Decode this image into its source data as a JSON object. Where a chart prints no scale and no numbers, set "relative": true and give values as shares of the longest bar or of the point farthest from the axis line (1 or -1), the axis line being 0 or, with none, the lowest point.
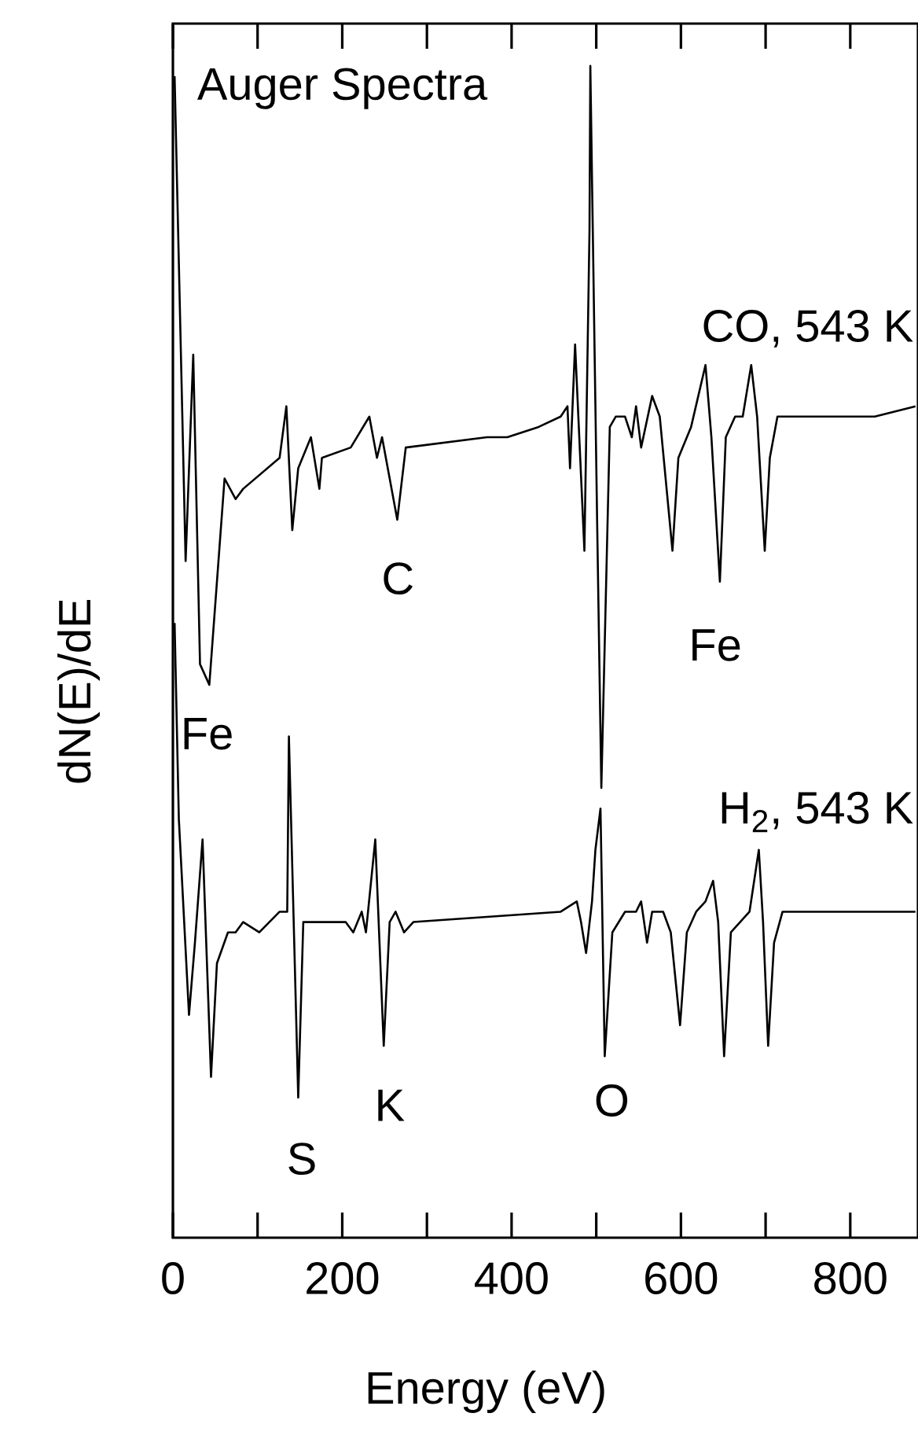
{
  "chart_data": {
    "type": "line",
    "relative": true,
    "xlabel": "Energy (eV)",
    "ylabel": "dN(E)/dE",
    "xlim": [
      0,
      880
    ],
    "xticks": [
      0,
      {
        "value": 100,
        "label": null
      },
      200,
      {
        "value": 300,
        "label": null
      },
      400,
      {
        "value": 500,
        "label": null
      },
      600,
      {
        "value": 700,
        "label": null
      },
      800
    ],
    "annotations": [
      "Auger Spectra",
      "Fe",
      "C",
      "Fe",
      "S",
      "K",
      "O"
    ],
    "series": [
      {
        "name": "CO, 543 K",
        "color": "#000000",
        "x": [
          2,
          15,
          24,
          32,
          43,
          52,
          61,
          74,
          83,
          126,
          134,
          141,
          148,
          163,
          173,
          176,
          210,
          232,
          241,
          247,
          265,
          275,
          371,
          395,
          432,
          458,
          466,
          469,
          475,
          486,
          492,
          493,
          501,
          506,
          516,
          523,
          534,
          542,
          547,
          553,
          566,
          575,
          590,
          597,
          612,
          629,
          636,
          646,
          653,
          664,
          673,
          683,
          690,
          699,
          705,
          714,
          766,
          829,
          877
        ],
        "values": [
          0.99,
          0.52,
          0.72,
          0.42,
          0.4,
          0.5,
          0.6,
          0.58,
          0.59,
          0.62,
          0.67,
          0.55,
          0.61,
          0.64,
          0.59,
          0.62,
          0.63,
          0.66,
          0.62,
          0.64,
          0.56,
          0.63,
          0.64,
          0.64,
          0.65,
          0.66,
          0.67,
          0.61,
          0.73,
          0.53,
          0.84,
          1.0,
          0.56,
          0.3,
          0.65,
          0.66,
          0.66,
          0.64,
          0.67,
          0.63,
          0.68,
          0.66,
          0.53,
          0.62,
          0.65,
          0.71,
          0.64,
          0.5,
          0.64,
          0.66,
          0.66,
          0.71,
          0.66,
          0.53,
          0.62,
          0.66,
          0.66,
          0.66,
          0.67
        ]
      },
      {
        "name": "H$_{2}$, 543 K",
        "color": "#000000",
        "x": [
          2,
          7,
          19,
          26,
          35,
          45,
          52,
          65,
          74,
          83,
          102,
          126,
          135,
          137,
          148,
          154,
          204,
          213,
          223,
          228,
          239,
          249,
          256,
          263,
          273,
          284,
          458,
          477,
          482,
          488,
          495,
          499,
          505,
          510,
          519,
          534,
          547,
          553,
          560,
          566,
          579,
          588,
          599,
          607,
          618,
          629,
          638,
          644,
          651,
          659,
          681,
          692,
          697,
          703,
          710,
          720,
          798,
          877
        ],
        "values": [
          0.46,
          0.27,
          0.08,
          0.15,
          0.25,
          0.02,
          0.13,
          0.16,
          0.16,
          0.17,
          0.16,
          0.18,
          0.18,
          0.35,
          0.0,
          0.17,
          0.17,
          0.16,
          0.18,
          0.16,
          0.25,
          0.05,
          0.17,
          0.18,
          0.16,
          0.17,
          0.18,
          0.19,
          0.17,
          0.14,
          0.19,
          0.24,
          0.28,
          0.04,
          0.16,
          0.18,
          0.18,
          0.19,
          0.15,
          0.18,
          0.18,
          0.16,
          0.07,
          0.16,
          0.18,
          0.19,
          0.21,
          0.17,
          0.04,
          0.16,
          0.18,
          0.24,
          0.17,
          0.05,
          0.15,
          0.18,
          0.18,
          0.18
        ]
      }
    ]
  }
}
